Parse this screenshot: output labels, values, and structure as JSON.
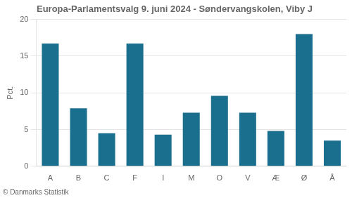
{
  "chart_data": {
    "type": "bar",
    "title": "Europa-Parlamentsvalg 9. juni 2024 - Søndervangskolen, Viby J",
    "ylabel": "Pct.",
    "footer": "© Danmarks Statistik",
    "categories": [
      "A",
      "B",
      "C",
      "F",
      "I",
      "M",
      "O",
      "V",
      "Æ",
      "Ø",
      "Å"
    ],
    "values": [
      16.7,
      7.9,
      4.5,
      16.7,
      4.3,
      7.3,
      9.6,
      7.3,
      4.8,
      18.0,
      3.5
    ],
    "color": "#1a6e8e",
    "ylim": [
      0,
      20
    ],
    "yticks": [
      0,
      5,
      10,
      15,
      20
    ],
    "grid": true
  }
}
